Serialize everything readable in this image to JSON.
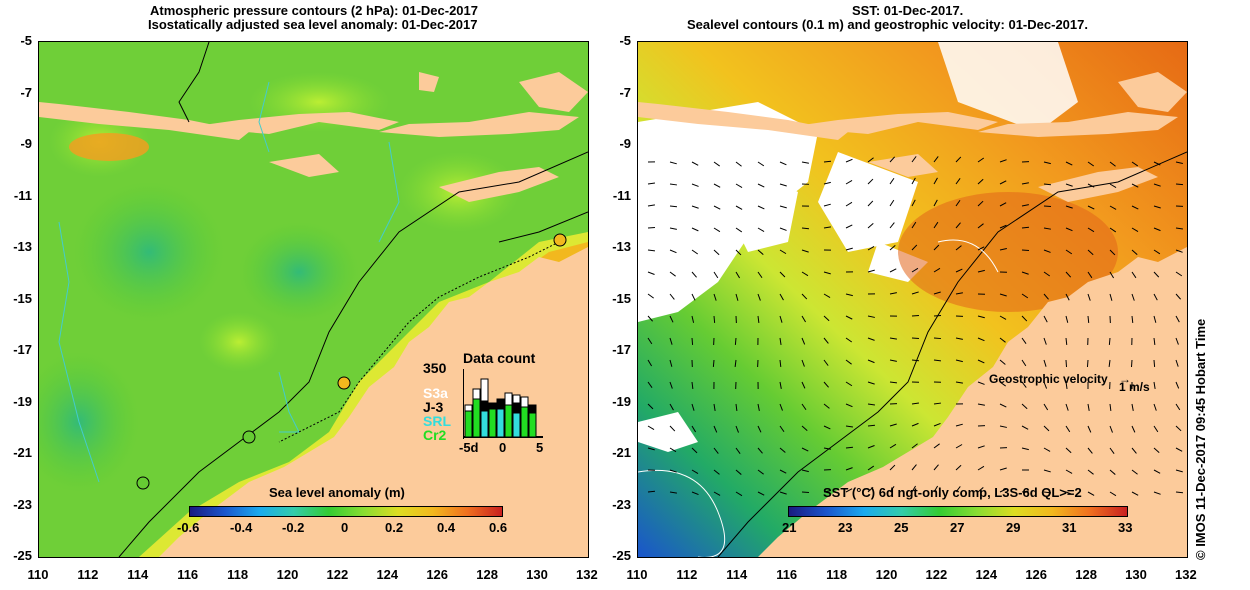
{
  "left_panel": {
    "title_line1": "Atmospheric pressure contours (2 hPa): 01-Dec-2017",
    "title_line2": "Isostatically adjusted sea level anomaly: 01-Dec-2017",
    "colorbar_title": "Sea level anomaly (m)",
    "colorbar_ticks": [
      "-0.6",
      "-0.4",
      "-0.2",
      "0",
      "0.2",
      "0.4",
      "0.6"
    ],
    "inset": {
      "title": "Data count",
      "ymax_label": "350",
      "x_labels": [
        "-5d",
        "0",
        "5"
      ],
      "legend": [
        {
          "label": "S3a",
          "color": "#ffffff"
        },
        {
          "label": "J-3",
          "color": "#000000"
        },
        {
          "label": "SRL",
          "color": "#33dddd"
        },
        {
          "label": "Cr2",
          "color": "#22dd22"
        }
      ]
    }
  },
  "right_panel": {
    "title_line1": "SST: 01-Dec-2017.",
    "title_line2": "Sealevel contours (0.1 m) and geostrophic velocity: 01-Dec-2017.",
    "colorbar_title": "SST (°C) 6d ngt-only comp, L3S-6d QL>=2",
    "colorbar_ticks": [
      "21",
      "23",
      "25",
      "27",
      "29",
      "31",
      "33"
    ],
    "velocity_label": "Geostrophic velocity",
    "velocity_scale": "1 m/s",
    "credit": "© IMOS 11-Dec-2017 09:45 Hobart Time"
  },
  "axes": {
    "y_ticks": [
      "-5",
      "-7",
      "-9",
      "-11",
      "-13",
      "-15",
      "-17",
      "-19",
      "-21",
      "-23",
      "-25"
    ],
    "x_ticks": [
      "110",
      "112",
      "114",
      "116",
      "118",
      "120",
      "122",
      "124",
      "126",
      "128",
      "130",
      "132"
    ]
  },
  "colors": {
    "land": "#fccb9b",
    "ocean_green": "#66cc33",
    "ocean_yellow": "#cce633",
    "sst_orange": "#f28c1e"
  }
}
